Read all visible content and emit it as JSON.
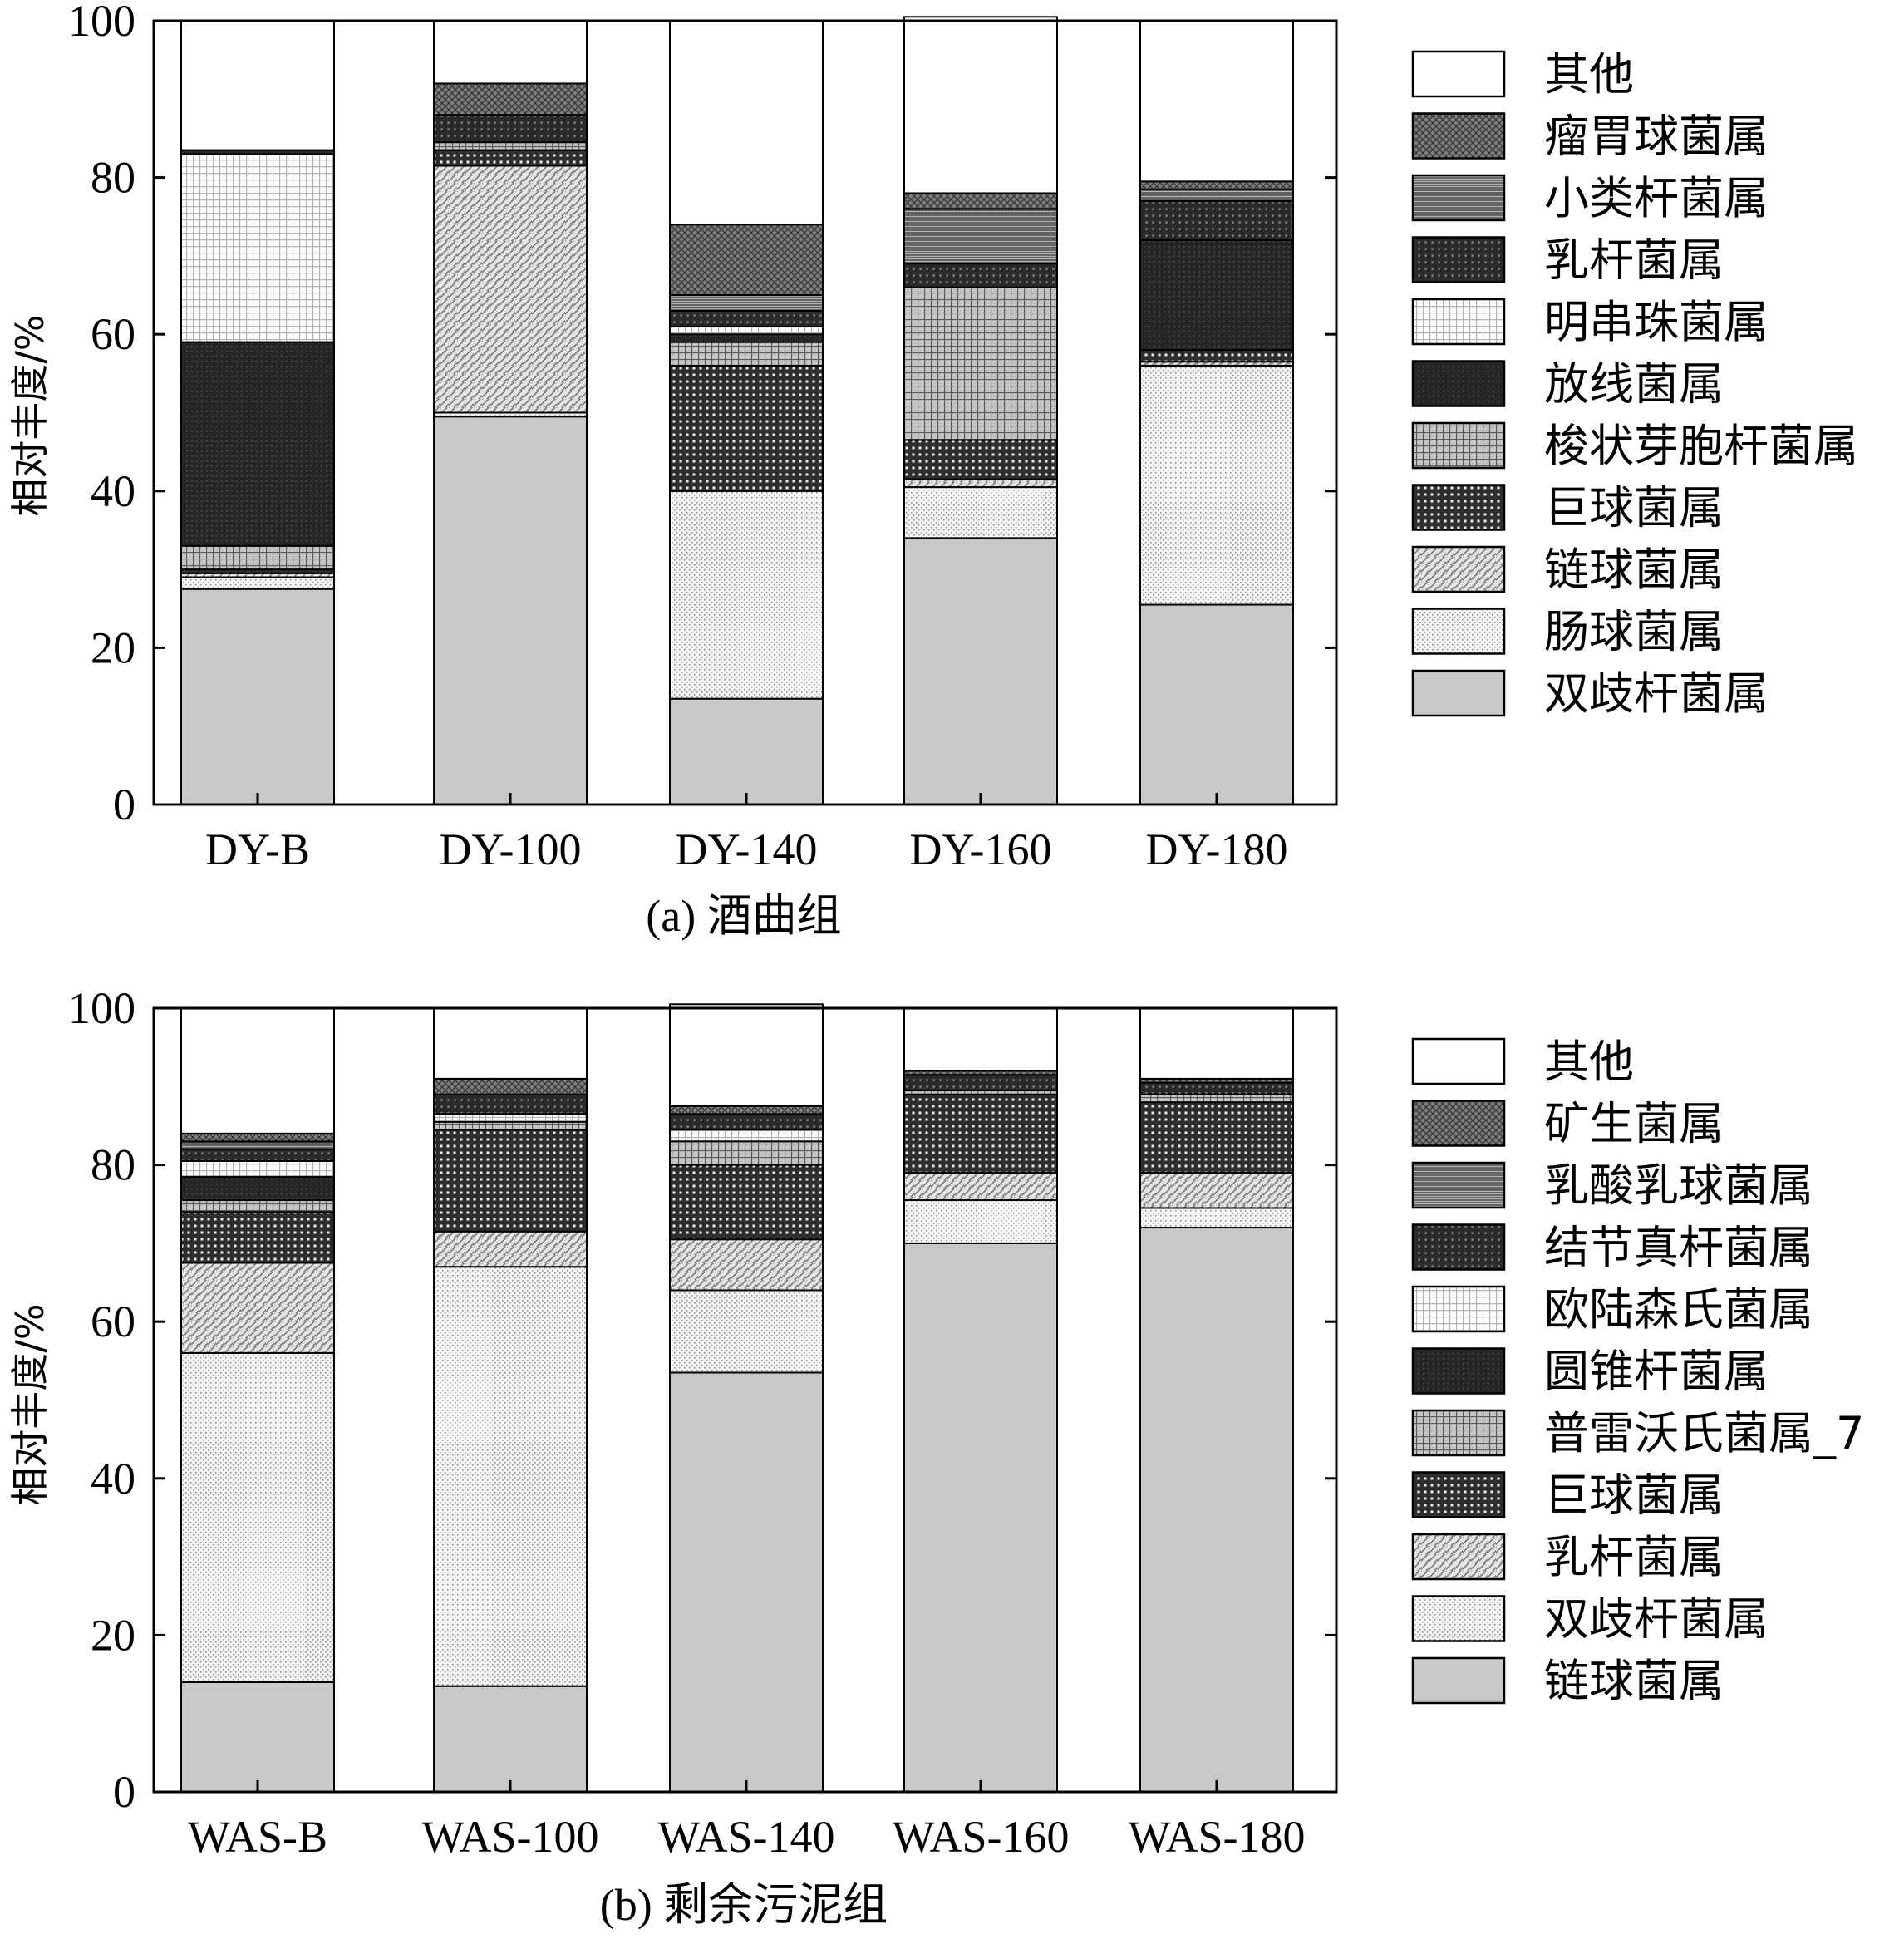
{
  "colors": {
    "双歧杆菌属": "#c8c8c8",
    "肠球菌属": "#eeeeee",
    "链球菌属": "#d4d4d4",
    "巨球菌属": "#3a3a3a",
    "梭状芽胞杆菌属": "#a8a8a8",
    "放线菌属": "#2a2a2a",
    "明串珠菌属": "#ececec",
    "乳杆菌属": "#3c3c3c",
    "小类杆菌属": "#8e8e8e",
    "瘤胃球菌属": "#6a6a6a",
    "其他": "#ffffff",
    "乳杆菌属_b": "#d4d4d4",
    "双歧杆菌属_b": "#eeeeee",
    "链球菌属_b": "#c8c8c8",
    "普雷沃氏菌属_7": "#a8a8a8",
    "圆锥杆菌属": "#2a2a2a",
    "欧陆森氏菌属": "#ececec",
    "结节真杆菌属": "#3c3c3c",
    "乳酸乳球菌属": "#8e8e8e",
    "矿生菌属": "#6a6a6a"
  },
  "chart_data": [
    {
      "type": "bar",
      "stacked": true,
      "caption": "(a) 酒曲组",
      "ylabel": "相对丰度/%",
      "ylim": [
        0,
        100
      ],
      "yticks": [
        "0",
        "20",
        "40",
        "60",
        "80",
        "100"
      ],
      "categories": [
        "DY-B",
        "DY-100",
        "DY-140",
        "DY-160",
        "DY-180"
      ],
      "series": [
        {
          "name": "双歧杆菌属",
          "pattern": "solid-gray",
          "values": [
            27.5,
            49.5,
            13.5,
            34.0,
            25.5
          ]
        },
        {
          "name": "肠球菌属",
          "pattern": "dots",
          "values": [
            1.5,
            0.5,
            26.5,
            6.5,
            30.5
          ]
        },
        {
          "name": "链球菌属",
          "pattern": "hatch",
          "values": [
            0.5,
            31.5,
            0.0,
            1.0,
            0.5
          ]
        },
        {
          "name": "巨球菌属",
          "pattern": "dense-grid",
          "values": [
            0.5,
            2.0,
            16.0,
            5.0,
            1.5
          ]
        },
        {
          "name": "梭状芽胞杆菌属",
          "pattern": "grid",
          "values": [
            3.0,
            1.0,
            3.0,
            19.5,
            0.0
          ]
        },
        {
          "name": "放线菌属",
          "pattern": "dark",
          "values": [
            26.0,
            0.0,
            1.0,
            0.0,
            14.0
          ]
        },
        {
          "name": "明串珠菌属",
          "pattern": "light-grid",
          "values": [
            24.0,
            0.0,
            1.0,
            0.0,
            0.0
          ]
        },
        {
          "name": "乳杆菌属",
          "pattern": "dark-grid",
          "values": [
            0.5,
            3.5,
            2.0,
            3.0,
            5.0
          ]
        },
        {
          "name": "小类杆菌属",
          "pattern": "hlines",
          "values": [
            0.0,
            0.0,
            2.0,
            7.0,
            1.5
          ]
        },
        {
          "name": "瘤胃球菌属",
          "pattern": "crosshatch",
          "values": [
            0.0,
            4.0,
            9.0,
            2.0,
            1.0
          ]
        },
        {
          "name": "其他",
          "pattern": "white",
          "values": [
            16.5,
            8.0,
            26.0,
            22.5,
            20.5
          ]
        }
      ],
      "legend": [
        "其他",
        "瘤胃球菌属",
        "小类杆菌属",
        "乳杆菌属",
        "明串珠菌属",
        "放线菌属",
        "梭状芽胞杆菌属",
        "巨球菌属",
        "链球菌属",
        "肠球菌属",
        "双歧杆菌属"
      ],
      "legend_position": "right"
    },
    {
      "type": "bar",
      "stacked": true,
      "caption": "(b) 剩余污泥组",
      "ylabel": "相对丰度/%",
      "ylim": [
        0,
        100
      ],
      "yticks": [
        "0",
        "20",
        "40",
        "60",
        "80",
        "100"
      ],
      "categories": [
        "WAS-B",
        "WAS-100",
        "WAS-140",
        "WAS-160",
        "WAS-180"
      ],
      "series": [
        {
          "name": "链球菌属",
          "pattern": "solid-gray",
          "values": [
            14.0,
            13.5,
            53.5,
            70.0,
            72.0
          ]
        },
        {
          "name": "双歧杆菌属",
          "pattern": "dots",
          "values": [
            42.0,
            53.5,
            10.5,
            5.5,
            2.5
          ]
        },
        {
          "name": "乳杆菌属",
          "pattern": "hatch",
          "values": [
            11.5,
            4.5,
            6.5,
            3.5,
            4.5
          ]
        },
        {
          "name": "巨球菌属",
          "pattern": "dense-grid",
          "values": [
            6.5,
            13.0,
            9.5,
            10.0,
            9.0
          ]
        },
        {
          "name": "普雷沃氏菌属_7",
          "pattern": "grid",
          "values": [
            1.5,
            1.0,
            3.0,
            0.5,
            1.0
          ]
        },
        {
          "name": "圆锥杆菌属",
          "pattern": "dark",
          "values": [
            3.0,
            0.0,
            0.0,
            0.0,
            0.0
          ]
        },
        {
          "name": "欧陆森氏菌属",
          "pattern": "light-grid",
          "values": [
            2.0,
            1.0,
            1.5,
            0.0,
            0.0
          ]
        },
        {
          "name": "结节真杆菌属",
          "pattern": "dark-grid",
          "values": [
            1.5,
            2.5,
            2.0,
            2.0,
            1.5
          ]
        },
        {
          "name": "乳酸乳球菌属",
          "pattern": "hlines",
          "values": [
            1.0,
            0.0,
            0.0,
            0.0,
            0.0
          ]
        },
        {
          "name": "矿生菌属",
          "pattern": "crosshatch",
          "values": [
            1.0,
            2.0,
            1.0,
            0.5,
            0.5
          ]
        },
        {
          "name": "其他",
          "pattern": "white",
          "values": [
            16.0,
            9.0,
            13.0,
            8.0,
            9.0
          ]
        }
      ],
      "legend": [
        "其他",
        "矿生菌属",
        "乳酸乳球菌属",
        "结节真杆菌属",
        "欧陆森氏菌属",
        "圆锥杆菌属",
        "普雷沃氏菌属_7",
        "巨球菌属",
        "乳杆菌属",
        "双歧杆菌属",
        "链球菌属"
      ],
      "legend_position": "right"
    }
  ]
}
